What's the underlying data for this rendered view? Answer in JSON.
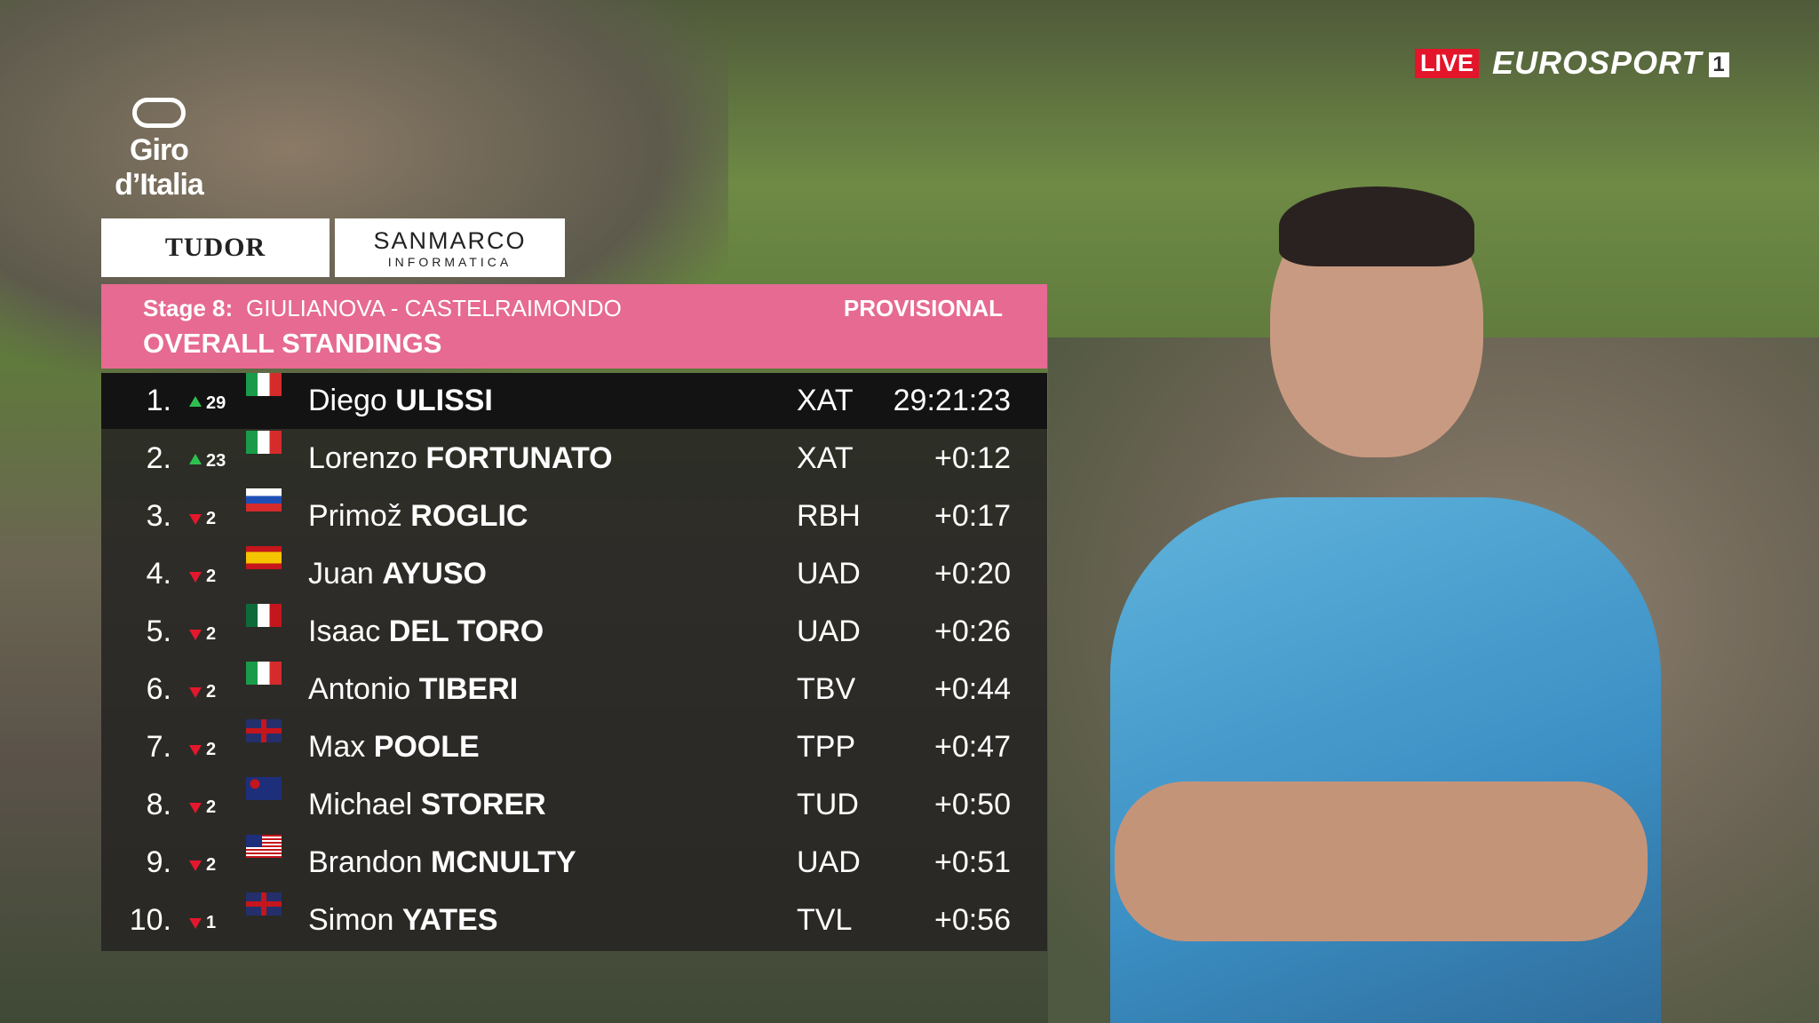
{
  "broadcast": {
    "live": "LIVE",
    "channel": "EUROSPORT",
    "channel_number": "1"
  },
  "event_logo": "Giro d’Italia",
  "sponsors": {
    "left": "TUDOR",
    "right": "SANMARCO",
    "right_sub": "INFORMATICA"
  },
  "header": {
    "stage_label": "Stage 8:",
    "route": "GIULIANOVA - CASTELRAIMONDO",
    "status": "PROVISIONAL",
    "title": "OVERALL STANDINGS"
  },
  "standings": {
    "rows": [
      {
        "rank": "1.",
        "trend": "up",
        "change": 29,
        "first": "Diego",
        "last": "ULISSI",
        "team": "XAT",
        "time": "29:21:23"
      },
      {
        "rank": "2.",
        "trend": "up",
        "change": 23,
        "first": "Lorenzo",
        "last": "FORTUNATO",
        "team": "XAT",
        "time": "+0:12"
      },
      {
        "rank": "3.",
        "trend": "down",
        "change": 2,
        "first": "Primož",
        "last": "ROGLIC",
        "team": "RBH",
        "time": "+0:17"
      },
      {
        "rank": "4.",
        "trend": "down",
        "change": 2,
        "first": "Juan",
        "last": "AYUSO",
        "team": "UAD",
        "time": "+0:20"
      },
      {
        "rank": "5.",
        "trend": "down",
        "change": 2,
        "first": "Isaac",
        "last": "DEL TORO",
        "team": "UAD",
        "time": "+0:26"
      },
      {
        "rank": "6.",
        "trend": "down",
        "change": 2,
        "first": "Antonio",
        "last": "TIBERI",
        "team": "TBV",
        "time": "+0:44"
      },
      {
        "rank": "7.",
        "trend": "down",
        "change": 2,
        "first": "Max",
        "last": "POOLE",
        "team": "TPP",
        "time": "+0:47"
      },
      {
        "rank": "8.",
        "trend": "down",
        "change": 2,
        "first": "Michael",
        "last": "STORER",
        "team": "TUD",
        "time": "+0:50"
      },
      {
        "rank": "9.",
        "trend": "down",
        "change": 2,
        "first": "Brandon",
        "last": "MCNULTY",
        "team": "UAD",
        "time": "+0:51"
      },
      {
        "rank": "10.",
        "trend": "down",
        "change": 1,
        "first": "Simon",
        "last": "YATES",
        "team": "TVL",
        "time": "+0:56"
      }
    ]
  }
}
